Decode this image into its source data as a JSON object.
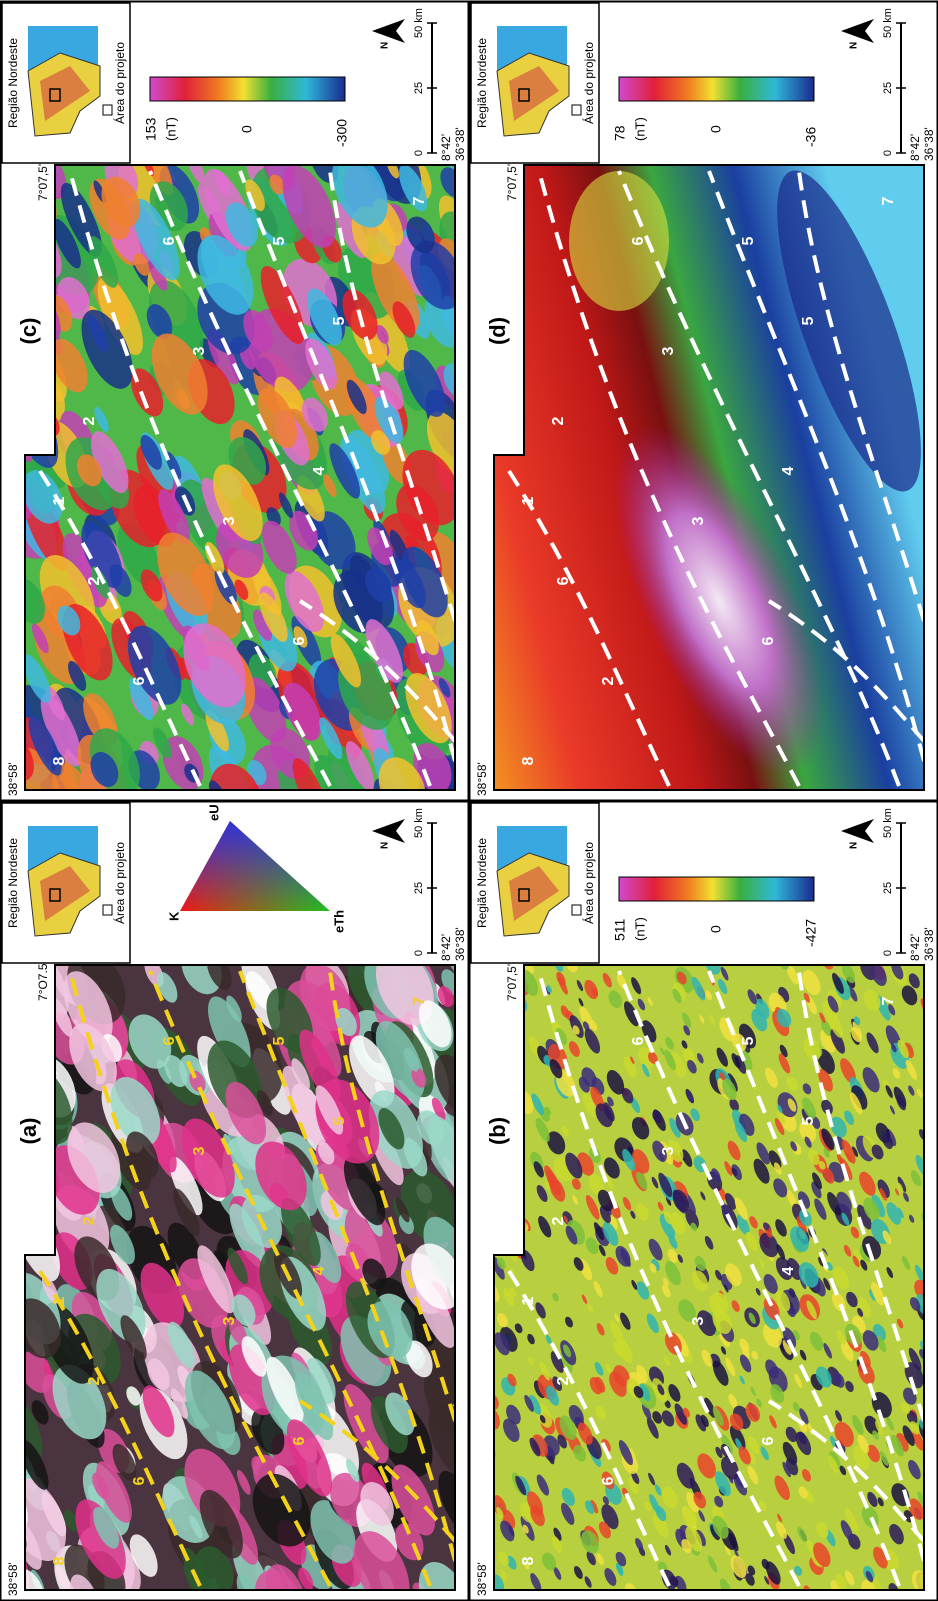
{
  "panels": [
    {
      "label": "(a)",
      "coord_top_left": "38°58'",
      "coord_top_right": "7°O7.5",
      "coord_bottom_lat": "8°42'",
      "coord_bottom_lon": "36°38'",
      "inset_title": "Região Nordeste",
      "inset_caption": "Área do projeto",
      "legend": {
        "kind": "ternary",
        "top": "K",
        "right": "eU",
        "bottom": "eTh"
      },
      "north": "N",
      "scale": [
        "0",
        "25",
        "50 km"
      ],
      "line_color": "#f5d21a",
      "zones": [
        "8",
        "6",
        "2",
        "1",
        "2",
        "6",
        "3",
        "4",
        "3",
        "5",
        "6",
        "5",
        "7"
      ]
    },
    {
      "label": "(b)",
      "coord_top_left": "38°58'",
      "coord_top_right": "7°07,5'",
      "coord_bottom_lat": "8°42'",
      "coord_bottom_lon": "36°38'",
      "inset_title": "Região Nordeste",
      "inset_caption": "Área do projeto",
      "legend": {
        "kind": "colorbar",
        "max": 511,
        "unit": "(nT)",
        "mid": 0,
        "min": -427
      },
      "north": "N",
      "scale": [
        "0",
        "25",
        "50 km"
      ],
      "line_color": "#ffffff",
      "zones": [
        "8",
        "6",
        "2",
        "1",
        "2",
        "6",
        "3",
        "4",
        "3",
        "5",
        "6",
        "5",
        "7"
      ]
    },
    {
      "label": "(c)",
      "coord_top_left": "38°58'",
      "coord_top_right": "7°07,5'",
      "coord_bottom_lat": "8°42'",
      "coord_bottom_lon": "36°38'",
      "inset_title": "Região Nordeste",
      "inset_caption": "Área do projeto",
      "legend": {
        "kind": "colorbar",
        "max": 153,
        "unit": "(nT)",
        "mid": 0,
        "min": -300
      },
      "north": "N",
      "scale": [
        "0",
        "25",
        "50 km"
      ],
      "line_color": "#ffffff",
      "zones": [
        "8",
        "6",
        "2",
        "1",
        "2",
        "6",
        "3",
        "4",
        "3",
        "5",
        "6",
        "5",
        "7"
      ]
    },
    {
      "label": "(d)",
      "coord_top_left": "38°58'",
      "coord_top_right": "7°07,5'",
      "coord_bottom_lat": "8°42'",
      "coord_bottom_lon": "36°38'",
      "inset_title": "Região Nordeste",
      "inset_caption": "Área do projeto",
      "legend": {
        "kind": "colorbar",
        "max": 78,
        "unit": "(nT)",
        "mid": 0,
        "min": -36
      },
      "north": "N",
      "scale": [
        "0",
        "25",
        "50 km"
      ],
      "line_color": "#ffffff",
      "zones": [
        "8",
        "2",
        "6",
        "1",
        "2",
        "6",
        "3",
        "4",
        "3",
        "5",
        "6",
        "5",
        "7"
      ]
    }
  ]
}
